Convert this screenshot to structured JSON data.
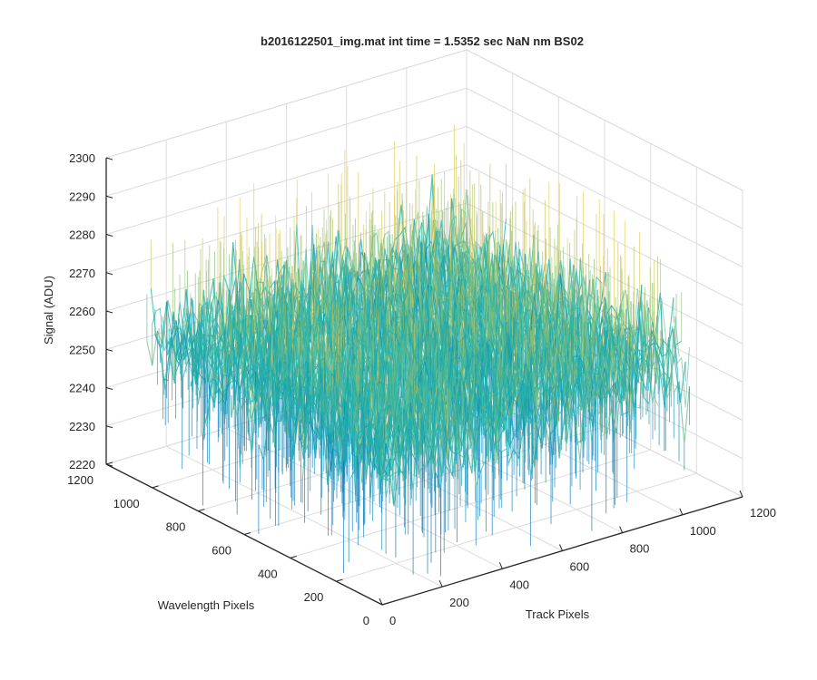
{
  "chart_data": {
    "type": "surface",
    "title": "b2016122501_img.mat int time = 1.5352 sec  NaN nm BS02",
    "xlabel": "Track Pixels",
    "ylabel": "Wavelength Pixels",
    "zlabel": "Signal (ADU)",
    "xlim": [
      0,
      1200
    ],
    "ylim": [
      0,
      1200
    ],
    "zlim": [
      2220,
      2300
    ],
    "xticks": [
      "0",
      "200",
      "400",
      "600",
      "800",
      "1000",
      "1200"
    ],
    "yticks": [
      "0",
      "200",
      "400",
      "600",
      "800",
      "1000",
      "1200"
    ],
    "zticks": [
      "2220",
      "2230",
      "2240",
      "2250",
      "2260",
      "2270",
      "2280",
      "2290",
      "2300"
    ],
    "surface": {
      "x_range": [
        1,
        1024
      ],
      "y_range": [
        1,
        1024
      ],
      "mean_signal": 2258,
      "min_signal": 2225,
      "max_signal": 2292,
      "colormap": "parula"
    },
    "grid": true,
    "colors": {
      "low": "#0072bd",
      "mid": "#20b4aa",
      "high": "#e6c84a",
      "axis": "#262626",
      "grid": "#dcdcdc"
    }
  }
}
